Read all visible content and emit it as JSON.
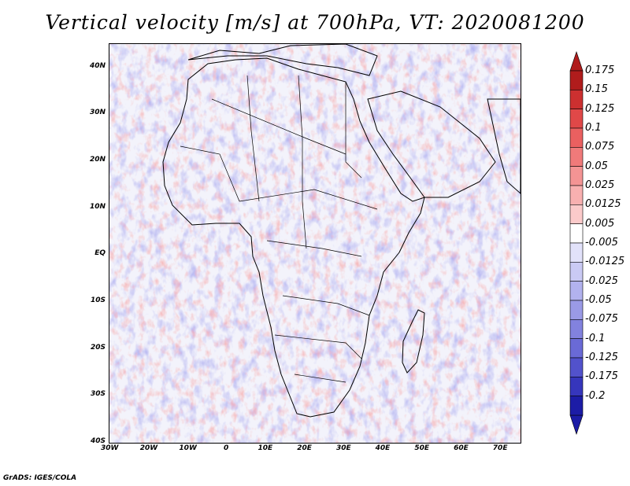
{
  "title": "Vertical velocity [m/s] at 700hPa, VT: 2020081200",
  "credit": "GrADS: IGES/COLA",
  "map": {
    "lon_range": [
      -30,
      75
    ],
    "lat_range": [
      -40,
      45
    ],
    "lat_ticks": [
      {
        "lat": 40,
        "label": "40N"
      },
      {
        "lat": 30,
        "label": "30N"
      },
      {
        "lat": 20,
        "label": "20N"
      },
      {
        "lat": 10,
        "label": "10N"
      },
      {
        "lat": 0,
        "label": "EQ"
      },
      {
        "lat": -10,
        "label": "10S"
      },
      {
        "lat": -20,
        "label": "20S"
      },
      {
        "lat": -30,
        "label": "30S"
      },
      {
        "lat": -40,
        "label": "40S"
      }
    ],
    "lon_ticks": [
      {
        "lon": -30,
        "label": "30W"
      },
      {
        "lon": -20,
        "label": "20W"
      },
      {
        "lon": -10,
        "label": "10W"
      },
      {
        "lon": 0,
        "label": "0"
      },
      {
        "lon": 10,
        "label": "10E"
      },
      {
        "lon": 20,
        "label": "20E"
      },
      {
        "lon": 30,
        "label": "30E"
      },
      {
        "lon": 40,
        "label": "40E"
      },
      {
        "lon": 50,
        "label": "50E"
      },
      {
        "lon": 60,
        "label": "60E"
      },
      {
        "lon": 70,
        "label": "70E"
      }
    ]
  },
  "colorbar": {
    "levels": [
      "0.175",
      "0.15",
      "0.125",
      "0.1",
      "0.075",
      "0.05",
      "0.025",
      "0.0125",
      "0.005",
      "-0.005",
      "-0.0125",
      "-0.025",
      "-0.05",
      "-0.075",
      "-0.1",
      "-0.125",
      "-0.175",
      "-0.2"
    ],
    "colors": [
      "#b01c1c",
      "#cc3030",
      "#e04848",
      "#ea6060",
      "#f07a7a",
      "#f49494",
      "#f8b0b0",
      "#fbcaca",
      "#ffffff",
      "#e2e2fa",
      "#cacaf4",
      "#b2b2ee",
      "#9a9ae6",
      "#8282de",
      "#6a6ad6",
      "#5252cc",
      "#3636bc",
      "#1c1ca6"
    ]
  }
}
